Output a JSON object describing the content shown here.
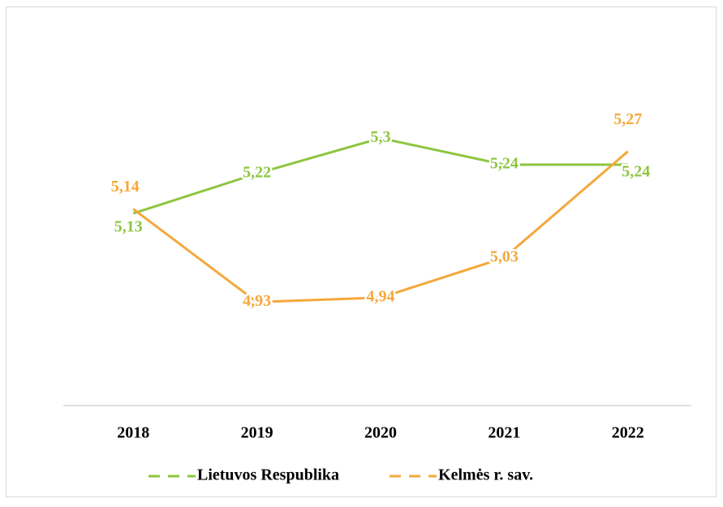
{
  "chart_data": {
    "type": "line",
    "categories": [
      "2018",
      "2019",
      "2020",
      "2021",
      "2022"
    ],
    "series": [
      {
        "name": "Lietuvos Respublika",
        "color": "#8dc63f",
        "values": [
          5.13,
          5.22,
          5.3,
          5.24,
          5.24
        ],
        "value_labels": [
          "5,13",
          "5,22",
          "5,3",
          "5,24",
          "5,24"
        ]
      },
      {
        "name": "Kelmės r. sav.",
        "color": "#f4a83a",
        "values": [
          5.14,
          4.93,
          4.94,
          5.03,
          5.27
        ],
        "value_labels": [
          "5,14",
          "4,93",
          "4,94",
          "5,03",
          "5,27"
        ]
      }
    ],
    "ylim": [
      4.7,
      5.5
    ],
    "legend": "bottom"
  }
}
